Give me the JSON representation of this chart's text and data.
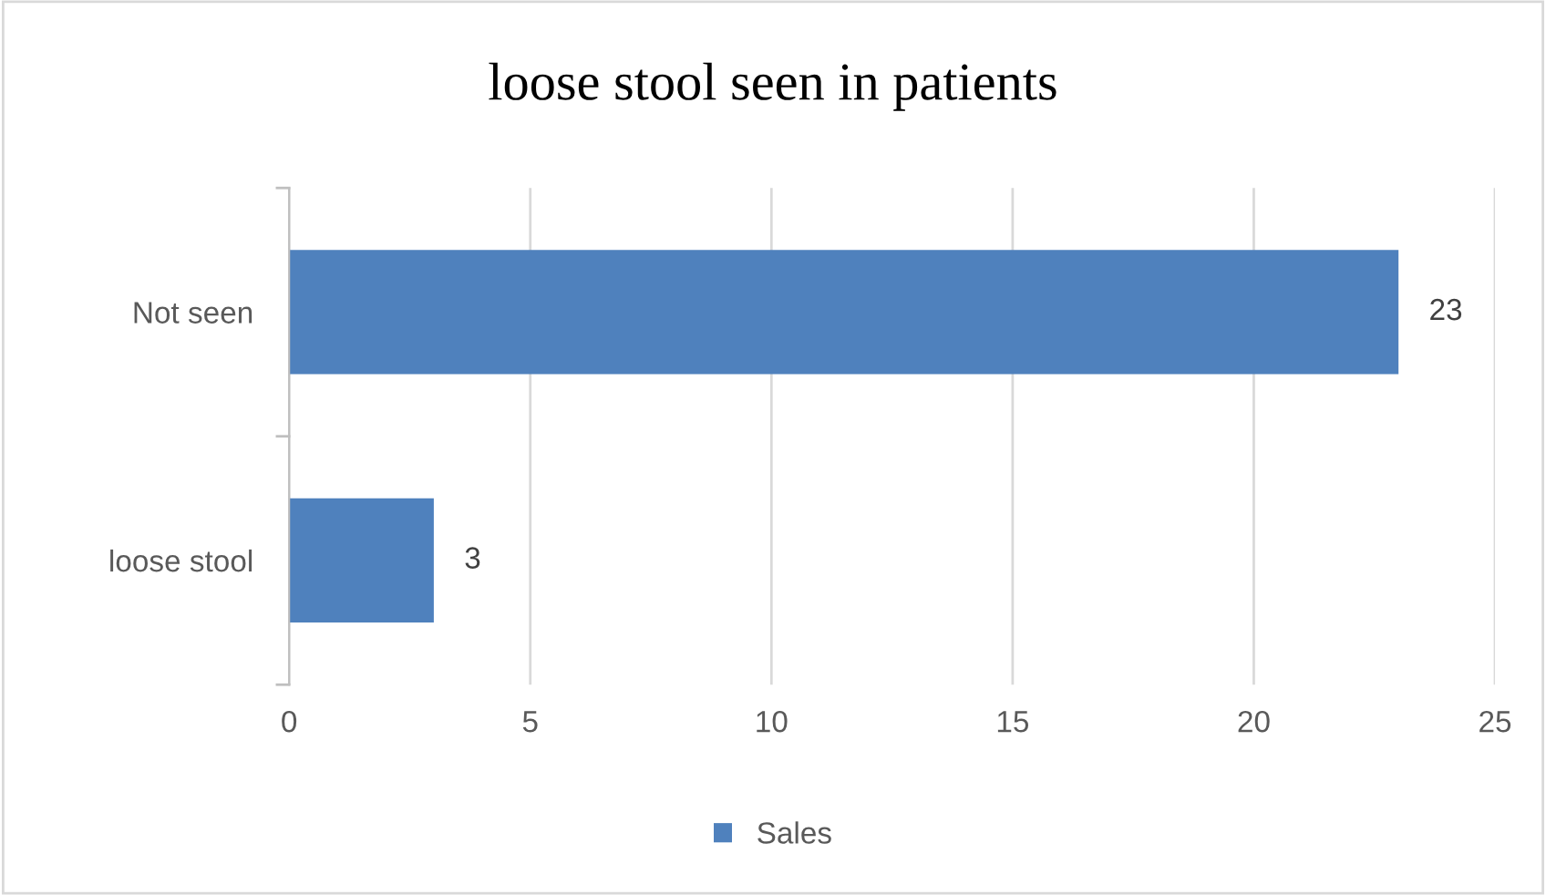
{
  "chart_data": {
    "type": "bar",
    "orientation": "horizontal",
    "title": "loose stool seen in patients",
    "categories": [
      "Not seen",
      "loose stool"
    ],
    "series": [
      {
        "name": "Sales",
        "color": "#4f81bd",
        "values": [
          23,
          3
        ]
      }
    ],
    "xlim": [
      0,
      25
    ],
    "xticks": [
      0,
      5,
      10,
      15,
      20,
      25
    ],
    "grid": "x",
    "legend": "bottom",
    "data_labels": true
  }
}
